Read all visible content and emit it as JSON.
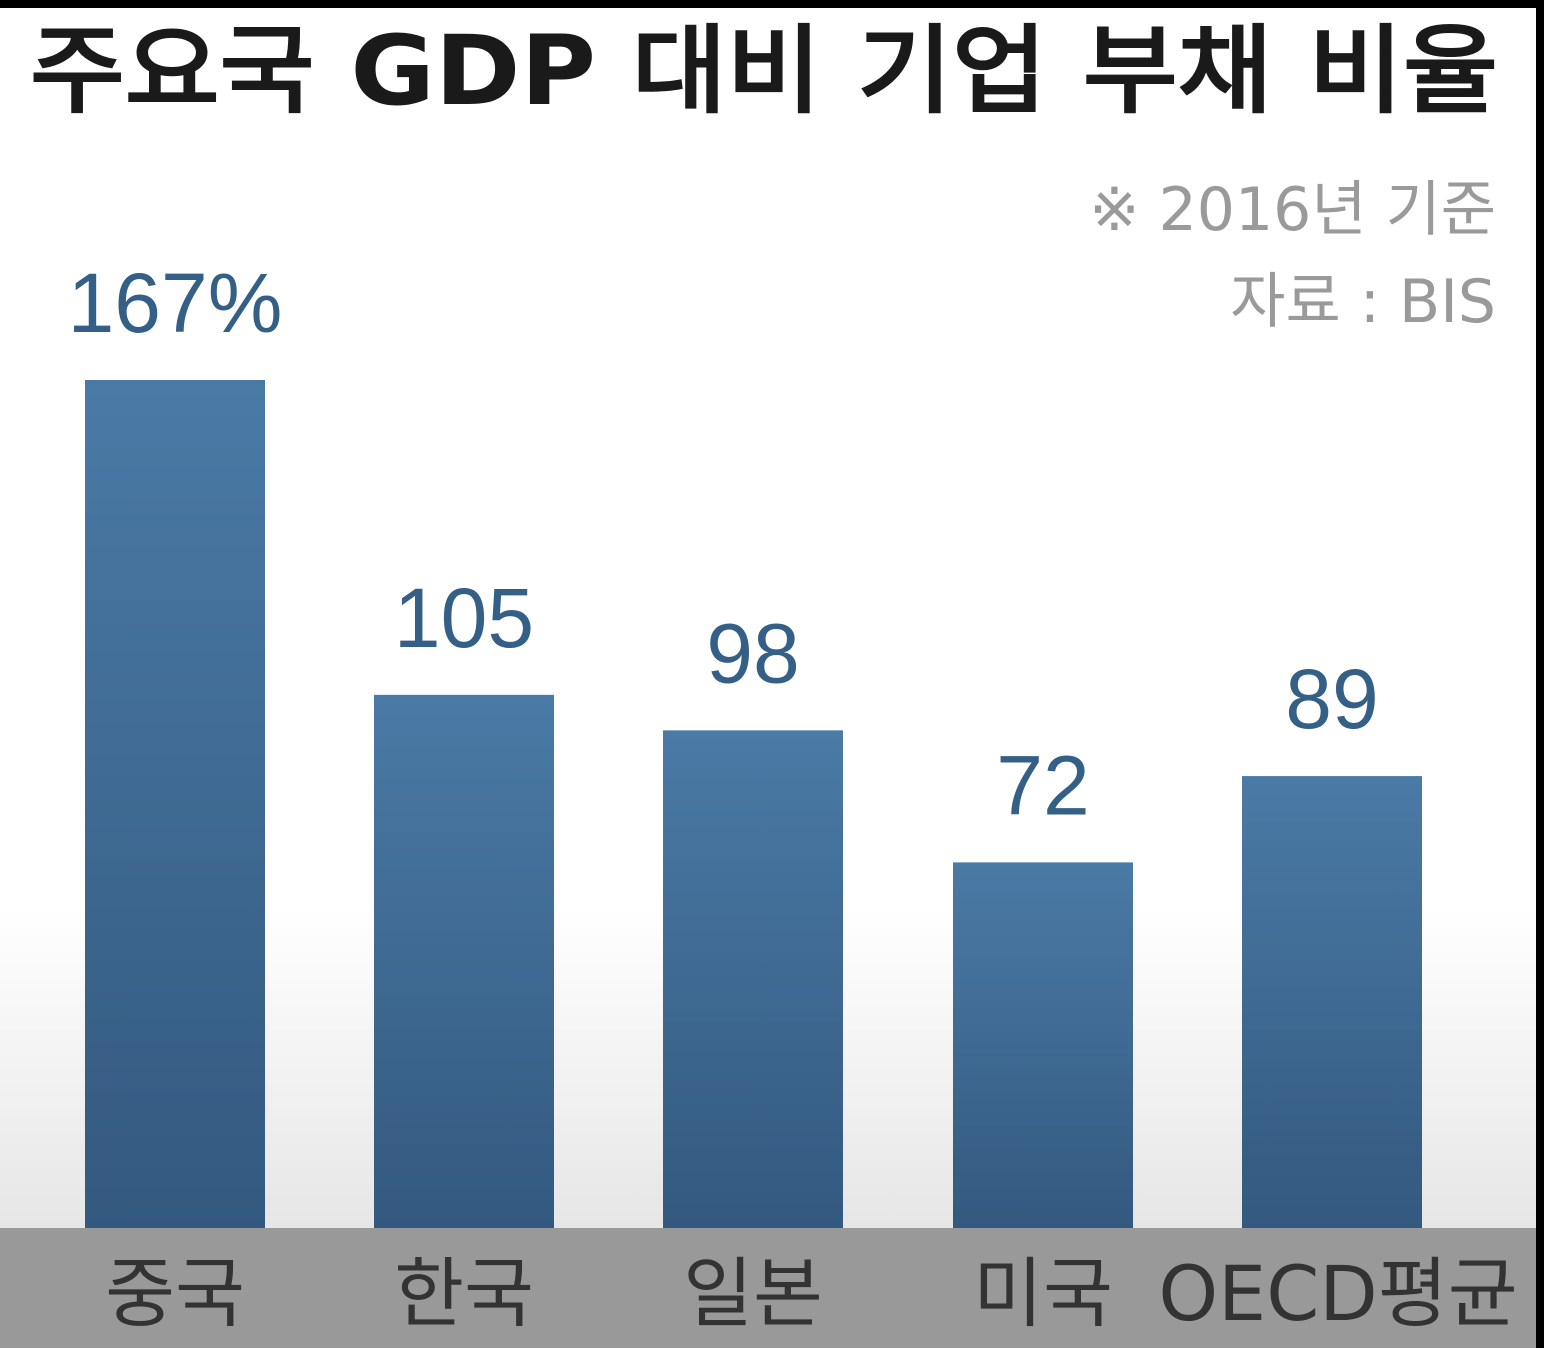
{
  "chart_data": {
    "type": "bar",
    "title": "주요국 GDP 대비 기업 부채 비율",
    "notes": [
      "※ 2016년 기준",
      "자료 : BIS"
    ],
    "categories": [
      "중국",
      "한국",
      "일본",
      "미국",
      "OECD평균"
    ],
    "values": [
      167,
      105,
      98,
      72,
      89
    ],
    "value_labels": [
      "167%",
      "105",
      "98",
      "72",
      "89"
    ],
    "xlabel": "",
    "ylabel": "",
    "ylim": [
      0,
      167
    ],
    "grid": false,
    "legend": "none"
  },
  "colors": {
    "bar_top": "#4a7aa6",
    "bar_bottom": "#33597f",
    "value_text": "#345f87",
    "axis_band": "#999999"
  }
}
